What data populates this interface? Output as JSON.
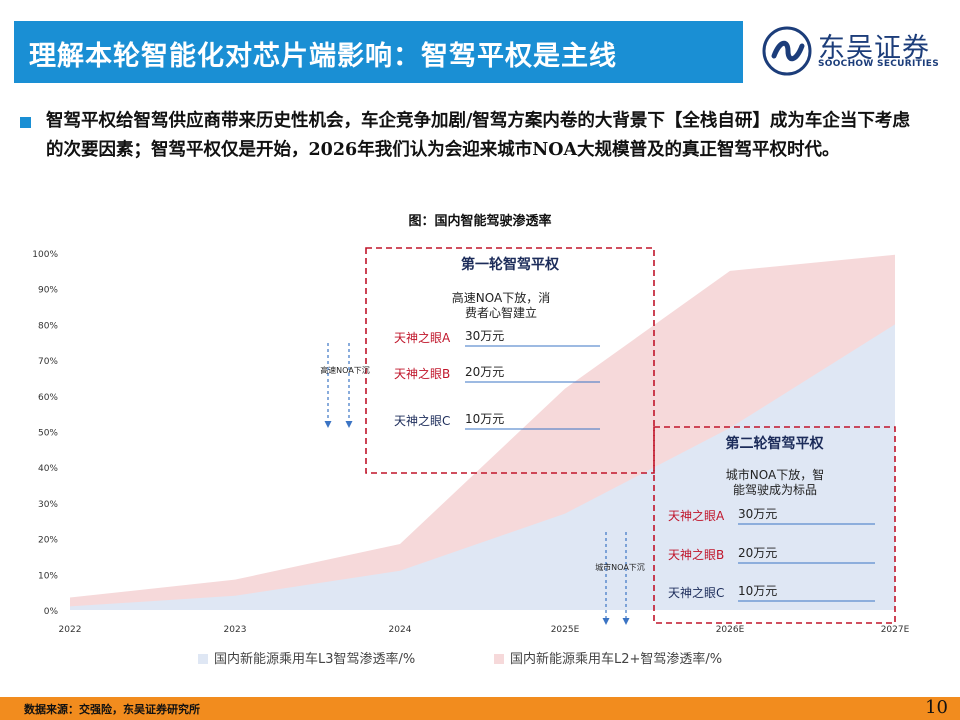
{
  "header": {
    "title": "理解本轮智能化对芯片端影响：智驾平权是主线",
    "logo_cn": "东吴证券",
    "logo_en": "SOOCHOW SECURITIES"
  },
  "bullet": {
    "text": "智驾平权给智驾供应商带来历史性机会，车企竞争加剧/智驾方案内卷的大背景下【全栈自研】成为车企当下考虑的次要因素；智驾平权仅是开始，2026年我们认为会迎来城市NOA大规模普及的真正智驾平权时代。"
  },
  "chart_title": "图：国内智能驾驶渗透率",
  "legend": {
    "l3": "国内新能源乘用车L3智驾渗透率/%",
    "l2": "国内新能源乘用车L2+智驾渗透率/%"
  },
  "colors": {
    "l3_fill": "#dfe7f4",
    "l2_fill": "#f6d9da",
    "accent": "#1a8fd4",
    "footer": "#f28c1e",
    "dash_box": "#c0152a"
  },
  "chart_data": {
    "type": "area",
    "categories": [
      "2022",
      "2023",
      "2024",
      "2025E",
      "2026E",
      "2027E"
    ],
    "series": [
      {
        "name": "国内新能源乘用车L3智驾渗透率/%",
        "values": [
          1,
          4,
          11,
          27,
          51,
          80
        ]
      },
      {
        "name": "国内新能源乘用车L2+智驾渗透率/%",
        "values": [
          3.5,
          8.5,
          18.5,
          62,
          95,
          99.5
        ]
      }
    ],
    "ylim": [
      0,
      100
    ],
    "yticks": [
      "0%",
      "10%",
      "20%",
      "30%",
      "40%",
      "50%",
      "60%",
      "70%",
      "80%",
      "90%",
      "100%"
    ],
    "grid": false,
    "legend_position": "bottom"
  },
  "annotations": {
    "box1": {
      "title": "第一轮智驾平权",
      "desc": "高速NOA下放，消费者心智建立",
      "items": [
        {
          "label": "天神之眼A",
          "value": "30万元"
        },
        {
          "label": "天神之眼B",
          "value": "20万元"
        },
        {
          "label": "天神之眼C",
          "value": "10万元"
        }
      ],
      "arrow_label": "高速NOA下沉"
    },
    "box2": {
      "title": "第二轮智驾平权",
      "desc": "城市NOA下放，智能驾驶成为标品",
      "items": [
        {
          "label": "天神之眼A",
          "value": "30万元"
        },
        {
          "label": "天神之眼B",
          "value": "20万元"
        },
        {
          "label": "天神之眼C",
          "value": "10万元"
        }
      ],
      "arrow_label": "城市NOA下沉"
    }
  },
  "footer": {
    "source": "数据来源：交强险，东吴证券研究所",
    "page": "10"
  }
}
